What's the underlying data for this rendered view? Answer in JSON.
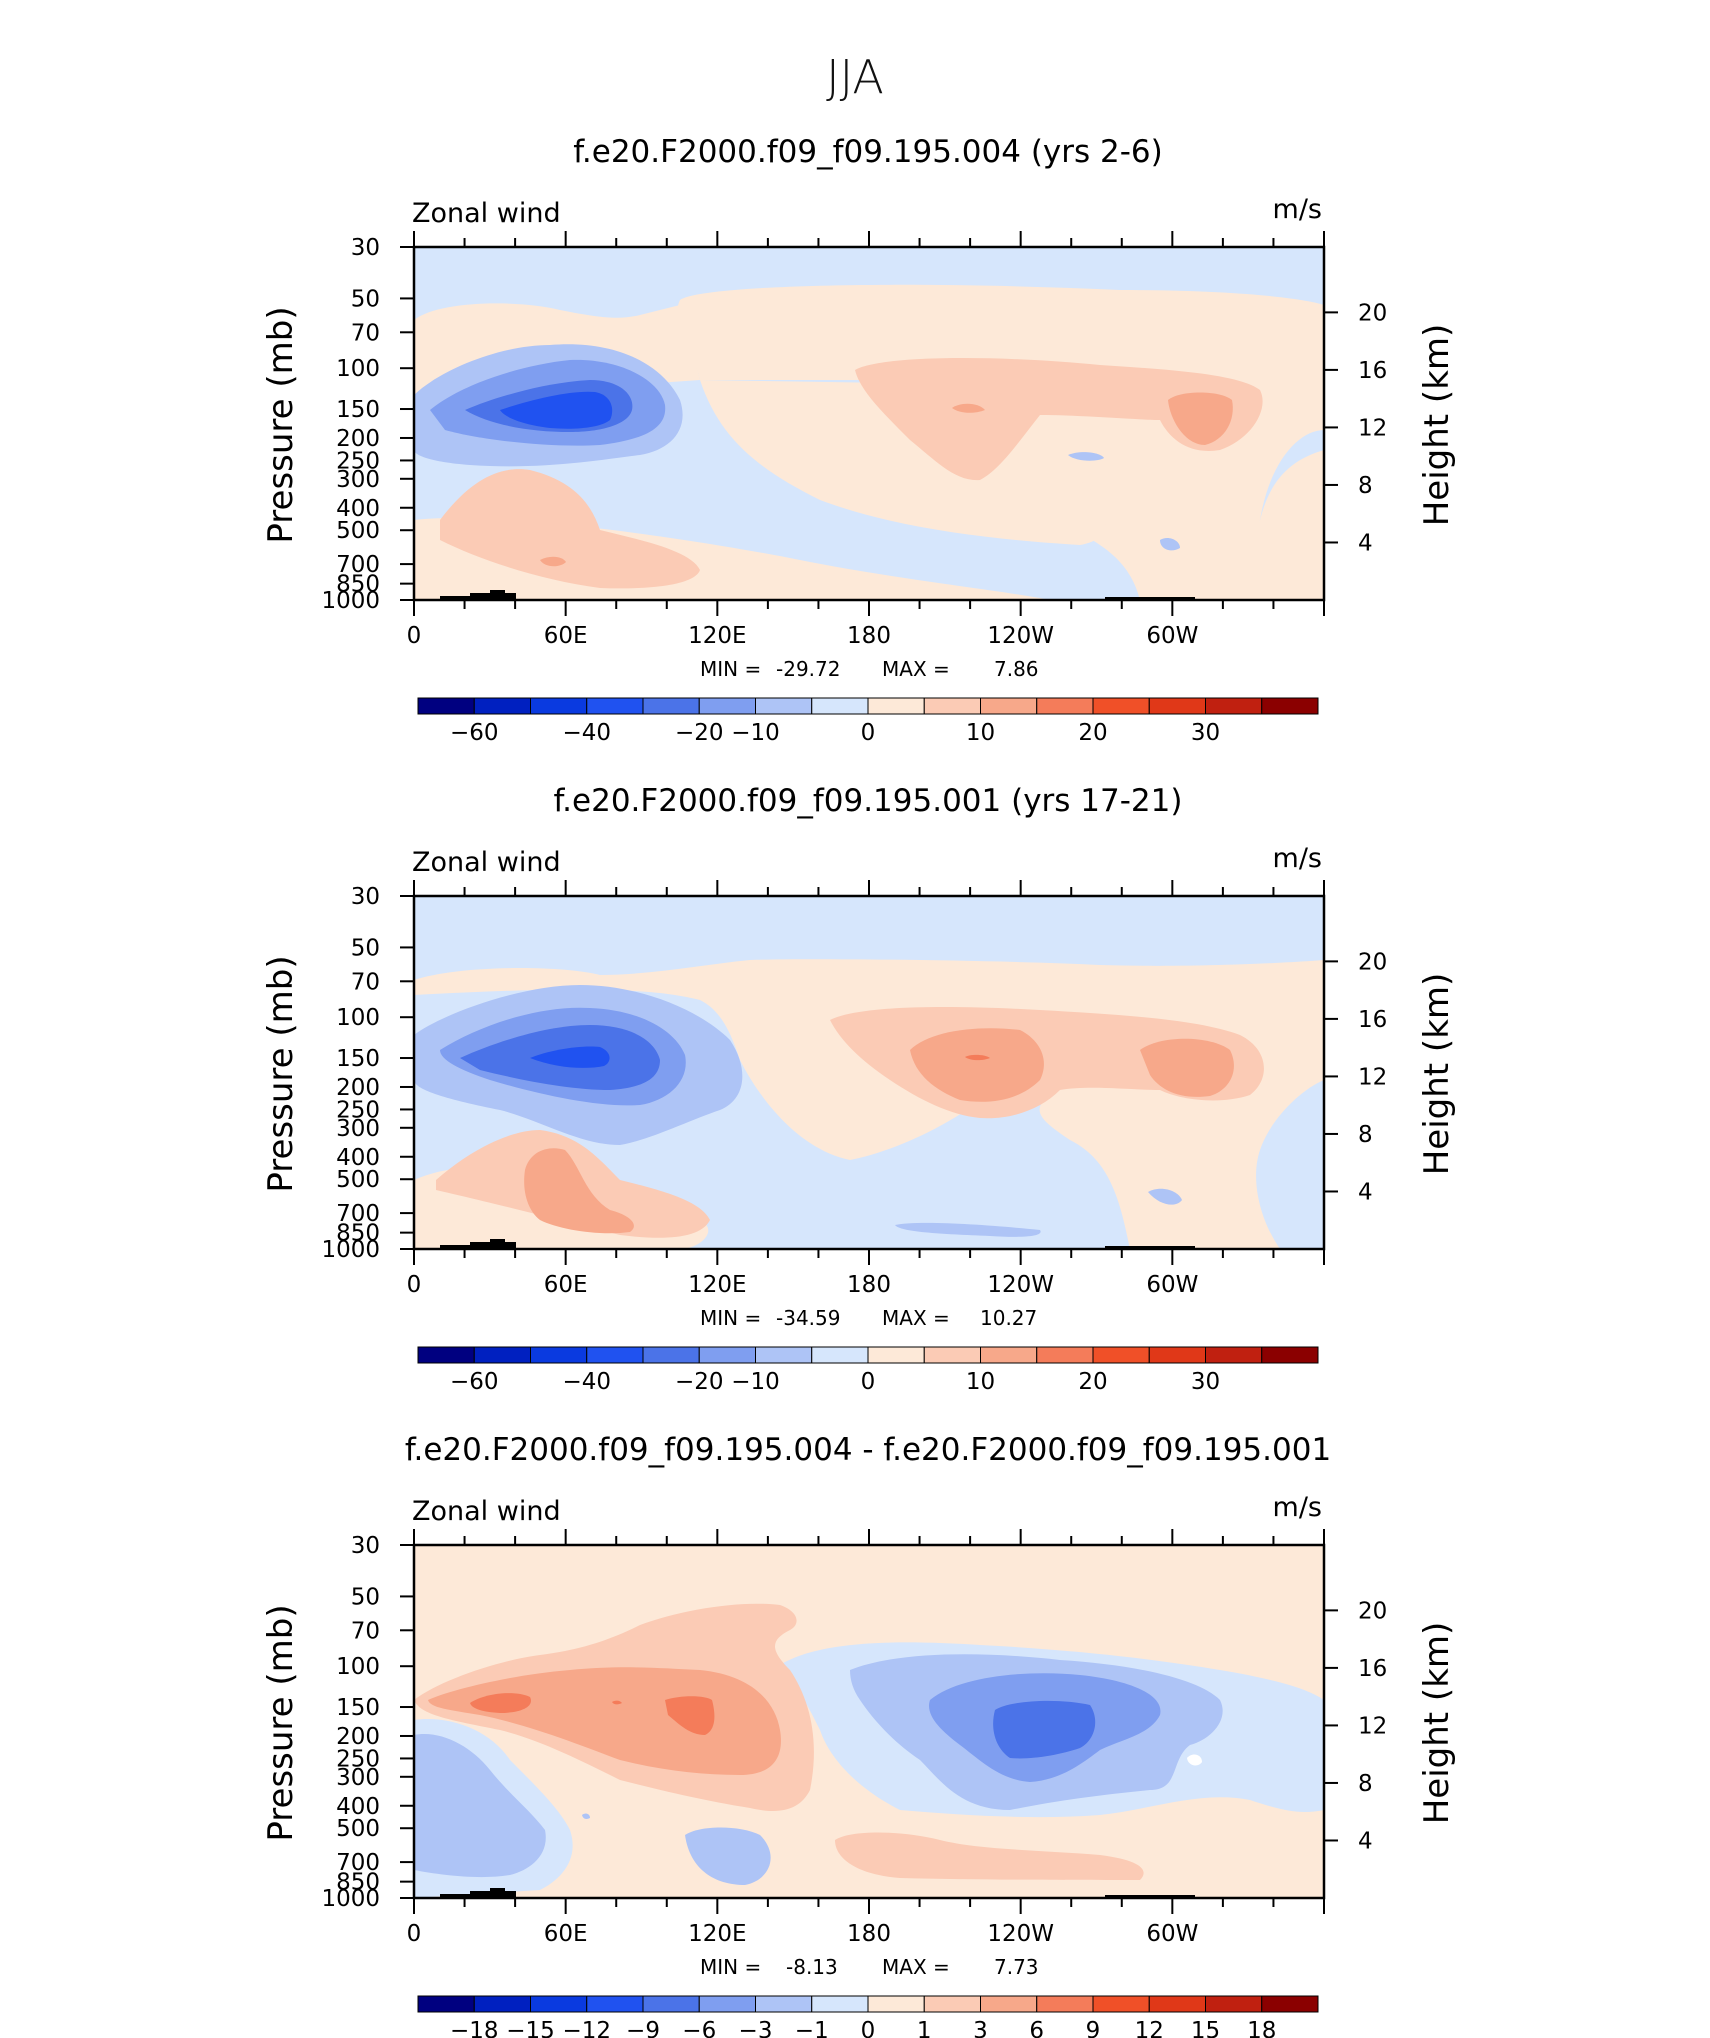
{
  "figure_title": "JJA",
  "colors": {
    "abs_scale": [
      "#000080",
      "#0020c0",
      "#0a3ae0",
      "#2052f0",
      "#4b73e8",
      "#7f9ef0",
      "#aec4f6",
      "#d6e6fc",
      "#fde9d8",
      "#fbcbb5",
      "#f7a88a",
      "#f47c5a",
      "#f05028",
      "#e03818",
      "#c02010",
      "#8b0000"
    ],
    "diff_scale": [
      "#000080",
      "#0020c0",
      "#0a3ae0",
      "#2052f0",
      "#4b73e8",
      "#7f9ef0",
      "#aec4f6",
      "#d6e6fc",
      "#fde9d8",
      "#fbcbb5",
      "#f7a88a",
      "#f47c5a",
      "#f05028",
      "#e03818",
      "#c02010",
      "#8b0000"
    ],
    "topography": "#000000"
  },
  "chart_data": [
    {
      "type": "filled-contour",
      "title": "f.e20.F2000.f09_f09.195.004 (yrs 2-6)",
      "left_label": "Zonal wind",
      "right_label": "m/s",
      "ylabel": "Pressure (mb)",
      "ylabel_right": "Height (km)",
      "xticks": [
        "0",
        "60E",
        "120E",
        "180",
        "120W",
        "60W"
      ],
      "yticks": [
        "30",
        "50",
        "70",
        "100",
        "150",
        "200",
        "250",
        "300",
        "400",
        "500",
        "700",
        "850",
        "1000"
      ],
      "yticks_right": [
        "20",
        "16",
        "12",
        "8",
        "4"
      ],
      "stats": {
        "min_label": "MIN =",
        "min": "-29.72",
        "max_label": "MAX =",
        "max": "7.86"
      },
      "colorbar_labels": [
        "-60",
        "-40",
        "-20",
        "-10",
        "0",
        "10",
        "20",
        "30"
      ],
      "scale": "abs",
      "features": [
        {
          "x": 73,
          "p": 150,
          "rx": 50,
          "ry": 70,
          "value": -30
        },
        {
          "x": 170,
          "p": 130,
          "rx": 70,
          "ry": 60,
          "value": 6
        },
        {
          "x": 230,
          "p": 150,
          "rx": 35,
          "ry": 50,
          "value": 8
        },
        {
          "x": 150,
          "p": 300,
          "rx": 60,
          "ry": 120,
          "value": -3
        },
        {
          "x": 55,
          "p": 600,
          "rx": 40,
          "ry": 200,
          "value": 4
        }
      ]
    },
    {
      "type": "filled-contour",
      "title": "f.e20.F2000.f09_f09.195.001 (yrs 17-21)",
      "left_label": "Zonal wind",
      "right_label": "m/s",
      "ylabel": "Pressure (mb)",
      "ylabel_right": "Height (km)",
      "xticks": [
        "0",
        "60E",
        "120E",
        "180",
        "120W",
        "60W"
      ],
      "yticks": [
        "30",
        "50",
        "70",
        "100",
        "150",
        "200",
        "250",
        "300",
        "400",
        "500",
        "700",
        "850",
        "1000"
      ],
      "yticks_right": [
        "20",
        "16",
        "12",
        "8",
        "4"
      ],
      "stats": {
        "min_label": "MIN =",
        "min": "-34.59",
        "max_label": "MAX =",
        "max": "10.27"
      },
      "colorbar_labels": [
        "-60",
        "-40",
        "-20",
        "-10",
        "0",
        "10",
        "20",
        "30"
      ],
      "scale": "abs",
      "features": [
        {
          "x": 65,
          "p": 150,
          "rx": 55,
          "ry": 80,
          "value": -34
        },
        {
          "x": 220,
          "p": 150,
          "rx": 70,
          "ry": 60,
          "value": 10
        },
        {
          "x": 60,
          "p": 650,
          "rx": 40,
          "ry": 200,
          "value": 5
        }
      ]
    },
    {
      "type": "filled-contour",
      "title": "f.e20.F2000.f09_f09.195.004 - f.e20.F2000.f09_f09.195.001",
      "left_label": "Zonal wind",
      "right_label": "m/s",
      "ylabel": "Pressure (mb)",
      "ylabel_right": "Height (km)",
      "xticks": [
        "0",
        "60E",
        "120E",
        "180",
        "120W",
        "60W"
      ],
      "yticks": [
        "30",
        "50",
        "70",
        "100",
        "150",
        "200",
        "250",
        "300",
        "400",
        "500",
        "700",
        "850",
        "1000"
      ],
      "yticks_right": [
        "20",
        "16",
        "12",
        "8",
        "4"
      ],
      "stats": {
        "min_label": "MIN =",
        "min": "-8.13",
        "max_label": "MAX =",
        "max": "7.73"
      },
      "colorbar_labels": [
        "-18",
        "-15",
        "-12",
        "-9",
        "-6",
        "-3",
        "-1",
        "0",
        "1",
        "3",
        "6",
        "9",
        "12",
        "15",
        "18"
      ],
      "scale": "diff",
      "features": [
        {
          "x": 70,
          "p": 180,
          "rx": 80,
          "ry": 80,
          "value": 7.7
        },
        {
          "x": 240,
          "p": 180,
          "rx": 70,
          "ry": 90,
          "value": -8.1
        },
        {
          "x": 40,
          "p": 500,
          "rx": 50,
          "ry": 250,
          "value": -3
        }
      ]
    }
  ]
}
